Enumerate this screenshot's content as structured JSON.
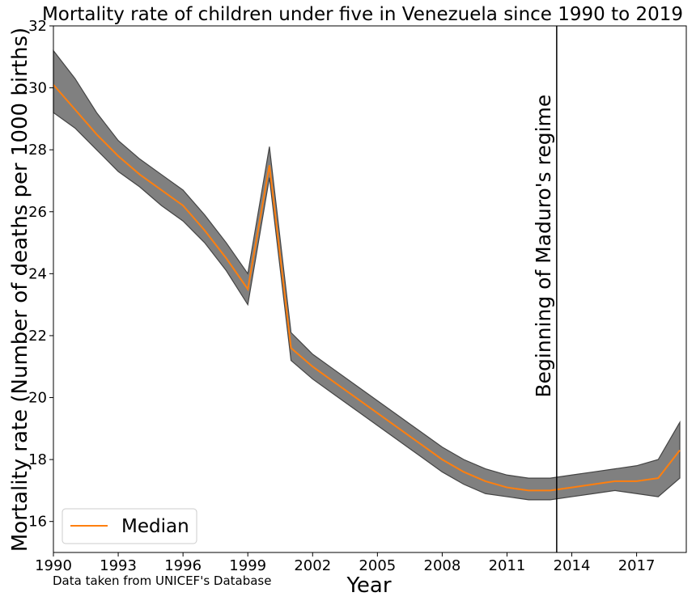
{
  "chart_data": {
    "type": "line",
    "title": "Mortality rate of children under five in Venezuela since 1990 to 2019",
    "xlabel": "Year",
    "ylabel": "Mortality rate (Number of deaths per 1000 births)",
    "xlim": [
      1990,
      2019.3
    ],
    "ylim": [
      15,
      32
    ],
    "xticks": [
      1990,
      1993,
      1996,
      1999,
      2002,
      2005,
      2008,
      2011,
      2014,
      2017
    ],
    "yticks": [
      16,
      18,
      20,
      22,
      24,
      26,
      28,
      30,
      32
    ],
    "grid": false,
    "legend": {
      "position": "lower-left",
      "entries": [
        "Median"
      ]
    },
    "x": [
      1990,
      1991,
      1992,
      1993,
      1994,
      1995,
      1996,
      1997,
      1998,
      1999,
      2000,
      2001,
      2002,
      2003,
      2004,
      2005,
      2006,
      2007,
      2008,
      2009,
      2010,
      2011,
      2012,
      2013,
      2014,
      2015,
      2016,
      2017,
      2018,
      2019
    ],
    "series": [
      {
        "name": "Median",
        "color": "#ff7f0e",
        "values": [
          30.1,
          29.3,
          28.5,
          27.8,
          27.2,
          26.7,
          26.2,
          25.4,
          24.5,
          23.5,
          27.5,
          21.6,
          21.0,
          20.5,
          20.0,
          19.5,
          19.0,
          18.5,
          18.0,
          17.6,
          17.3,
          17.1,
          17.0,
          17.0,
          17.1,
          17.2,
          17.3,
          17.3,
          17.4,
          18.3
        ]
      }
    ],
    "band": {
      "color": "#808080",
      "lower": [
        29.2,
        28.7,
        28.0,
        27.3,
        26.8,
        26.2,
        25.7,
        25.0,
        24.1,
        23.0,
        27.1,
        21.2,
        20.6,
        20.1,
        19.6,
        19.1,
        18.6,
        18.1,
        17.6,
        17.2,
        16.9,
        16.8,
        16.7,
        16.7,
        16.8,
        16.9,
        17.0,
        16.9,
        16.8,
        17.4
      ],
      "upper": [
        31.2,
        30.3,
        29.2,
        28.3,
        27.7,
        27.2,
        26.7,
        25.9,
        25.0,
        24.0,
        28.1,
        22.1,
        21.4,
        20.9,
        20.4,
        19.9,
        19.4,
        18.9,
        18.4,
        18.0,
        17.7,
        17.5,
        17.4,
        17.4,
        17.5,
        17.6,
        17.7,
        17.8,
        18.0,
        19.2
      ]
    },
    "annotations": [
      {
        "text": "Beginning of Maduro's regime",
        "x": 2013.3
      },
      {
        "text": "Data taken from UNICEF's Database"
      }
    ]
  }
}
